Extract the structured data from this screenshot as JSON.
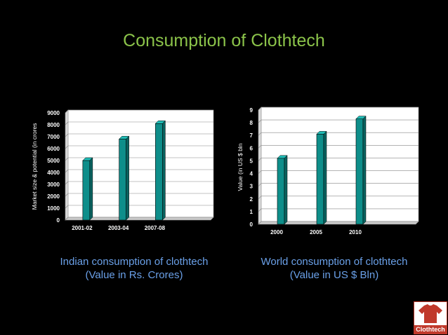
{
  "slide": {
    "title": "Consumption of Clothtech",
    "captions": [
      [
        "Indian consumption of clothtech",
        "(Value in Rs. Crores)"
      ],
      [
        "World consumption of clothtech",
        "(Value in US $ Bln)"
      ]
    ],
    "logo_text": "Clothtech"
  },
  "colors": {
    "title": "#8bc34a",
    "bar": "#0e8e8a",
    "bar_top": "#1fbcb6",
    "caption": "#6aa0e8",
    "logo": "#c0392b"
  },
  "chart_data": [
    {
      "type": "bar",
      "categories": [
        "2001-02",
        "2003-04",
        "2007-08",
        ""
      ],
      "values": [
        5000,
        6800,
        8100,
        null
      ],
      "ylabel": "Market size & potential (in crores",
      "ylim": [
        0,
        9000
      ],
      "yticks": [
        0,
        1000,
        2000,
        3000,
        4000,
        5000,
        6000,
        7000,
        8000,
        9000
      ],
      "grid": true
    },
    {
      "type": "bar",
      "categories": [
        "2000",
        "2005",
        "2010",
        ""
      ],
      "values": [
        5.2,
        7.1,
        8.3,
        null
      ],
      "ylabel": "Value (in US $ bln",
      "ylim": [
        0,
        9
      ],
      "yticks": [
        0,
        1,
        2,
        3,
        4,
        5,
        6,
        7,
        8,
        9
      ],
      "grid": true
    }
  ]
}
